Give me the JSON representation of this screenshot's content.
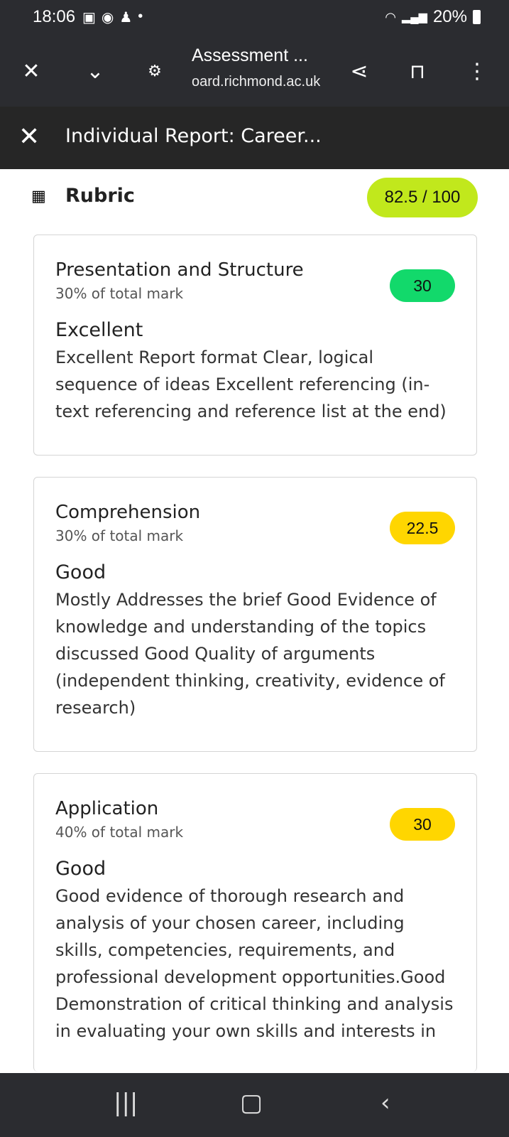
{
  "status": {
    "time": "18:06",
    "battery": "20%",
    "icons": [
      "gallery-icon",
      "whatsapp-icon",
      "snapchat-icon",
      "dot-icon"
    ]
  },
  "browser": {
    "title": "Assessment ...",
    "url": "oard.richmond.ac.uk"
  },
  "panel": {
    "title": "Individual Report: Career..."
  },
  "rubric": {
    "label": "Rubric",
    "total": "82.5 / 100"
  },
  "criteria": [
    {
      "name": "Presentation and Structure",
      "weight": "30% of total mark",
      "score": "30",
      "score_color": "#12d96b",
      "level": "Excellent",
      "description": "Excellent Report format Clear, logical sequence of ideas Excellent referencing (in-text referencing and reference list at the end)"
    },
    {
      "name": "Comprehension",
      "weight": "30% of total mark",
      "score": "22.5",
      "score_color": "#ffd600",
      "level": "Good",
      "description": "Mostly Addresses the brief Good Evidence of knowledge and understanding of the topics discussed Good Quality of arguments (independent thinking, creativity, evidence of research)"
    },
    {
      "name": "Application",
      "weight": "40% of total mark",
      "score": "30",
      "score_color": "#ffd600",
      "level": "Good",
      "description": "Good evidence of thorough research and analysis of your chosen career, including skills, competencies, requirements, and professional development opportunities.Good Demonstration of critical thinking and analysis in evaluating your own skills and interests in"
    }
  ]
}
